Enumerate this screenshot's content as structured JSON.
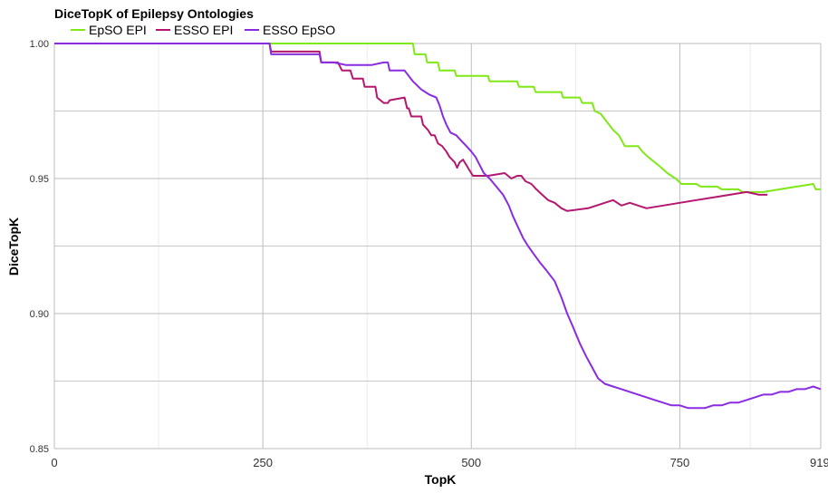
{
  "chart_data": {
    "type": "line",
    "title": "DiceTopK of Epilepsy Ontologies",
    "xlabel": "TopK",
    "ylabel": "DiceTopK",
    "xlim": [
      0,
      919
    ],
    "ylim": [
      0.85,
      1.0
    ],
    "x_ticks": [
      "0",
      "250",
      "500",
      "750",
      "919"
    ],
    "x_tick_values": [
      0,
      250,
      500,
      750,
      919
    ],
    "y_ticks": [
      "1.00",
      "0.95",
      "0.90",
      "0.85"
    ],
    "y_tick_values": [
      1.0,
      0.95,
      0.9,
      0.85
    ],
    "grid": true,
    "legend_position": "top-left",
    "series": [
      {
        "name": "EpSO EPI",
        "color": "#7FE817",
        "points": [
          [
            0,
            1.0
          ],
          [
            430,
            1.0
          ],
          [
            432,
            0.996
          ],
          [
            445,
            0.996
          ],
          [
            447,
            0.993
          ],
          [
            460,
            0.993
          ],
          [
            462,
            0.99
          ],
          [
            480,
            0.99
          ],
          [
            482,
            0.988
          ],
          [
            520,
            0.988
          ],
          [
            522,
            0.986
          ],
          [
            555,
            0.986
          ],
          [
            557,
            0.984
          ],
          [
            575,
            0.984
          ],
          [
            577,
            0.982
          ],
          [
            608,
            0.982
          ],
          [
            610,
            0.98
          ],
          [
            630,
            0.98
          ],
          [
            633,
            0.978
          ],
          [
            645,
            0.978
          ],
          [
            648,
            0.975
          ],
          [
            655,
            0.974
          ],
          [
            660,
            0.972
          ],
          [
            665,
            0.97
          ],
          [
            670,
            0.968
          ],
          [
            677,
            0.966
          ],
          [
            684,
            0.962
          ],
          [
            700,
            0.962
          ],
          [
            705,
            0.96
          ],
          [
            712,
            0.958
          ],
          [
            720,
            0.956
          ],
          [
            728,
            0.954
          ],
          [
            735,
            0.952
          ],
          [
            745,
            0.95
          ],
          [
            752,
            0.948
          ],
          [
            770,
            0.948
          ],
          [
            775,
            0.947
          ],
          [
            795,
            0.947
          ],
          [
            800,
            0.946
          ],
          [
            820,
            0.946
          ],
          [
            825,
            0.945
          ],
          [
            850,
            0.945
          ],
          [
            870,
            0.946
          ],
          [
            890,
            0.947
          ],
          [
            910,
            0.948
          ],
          [
            913,
            0.946
          ],
          [
            919,
            0.946
          ]
        ]
      },
      {
        "name": "ESSO EPI",
        "color": "#B5176E",
        "points": [
          [
            0,
            1.0
          ],
          [
            258,
            1.0
          ],
          [
            260,
            0.997
          ],
          [
            318,
            0.997
          ],
          [
            320,
            0.993
          ],
          [
            340,
            0.993
          ],
          [
            345,
            0.99
          ],
          [
            355,
            0.99
          ],
          [
            358,
            0.987
          ],
          [
            370,
            0.987
          ],
          [
            372,
            0.984
          ],
          [
            385,
            0.984
          ],
          [
            387,
            0.98
          ],
          [
            395,
            0.978
          ],
          [
            400,
            0.978
          ],
          [
            402,
            0.979
          ],
          [
            420,
            0.98
          ],
          [
            423,
            0.976
          ],
          [
            425,
            0.976
          ],
          [
            428,
            0.973
          ],
          [
            440,
            0.973
          ],
          [
            442,
            0.97
          ],
          [
            448,
            0.968
          ],
          [
            452,
            0.966
          ],
          [
            456,
            0.966
          ],
          [
            460,
            0.963
          ],
          [
            465,
            0.962
          ],
          [
            470,
            0.96
          ],
          [
            474,
            0.958
          ],
          [
            480,
            0.956
          ],
          [
            483,
            0.954
          ],
          [
            486,
            0.956
          ],
          [
            490,
            0.957
          ],
          [
            494,
            0.955
          ],
          [
            498,
            0.953
          ],
          [
            502,
            0.951
          ],
          [
            520,
            0.951
          ],
          [
            540,
            0.952
          ],
          [
            548,
            0.95
          ],
          [
            555,
            0.951
          ],
          [
            560,
            0.951
          ],
          [
            565,
            0.949
          ],
          [
            572,
            0.948
          ],
          [
            578,
            0.946
          ],
          [
            585,
            0.944
          ],
          [
            592,
            0.942
          ],
          [
            600,
            0.941
          ],
          [
            608,
            0.939
          ],
          [
            615,
            0.938
          ],
          [
            640,
            0.939
          ],
          [
            660,
            0.941
          ],
          [
            670,
            0.942
          ],
          [
            680,
            0.94
          ],
          [
            690,
            0.941
          ],
          [
            700,
            0.94
          ],
          [
            710,
            0.939
          ],
          [
            730,
            0.94
          ],
          [
            750,
            0.941
          ],
          [
            770,
            0.942
          ],
          [
            790,
            0.943
          ],
          [
            810,
            0.944
          ],
          [
            830,
            0.945
          ],
          [
            845,
            0.944
          ],
          [
            855,
            0.944
          ]
        ]
      },
      {
        "name": "ESSO EpSO",
        "color": "#8A2BE2",
        "points": [
          [
            0,
            1.0
          ],
          [
            258,
            1.0
          ],
          [
            260,
            0.996
          ],
          [
            280,
            0.996
          ],
          [
            300,
            0.996
          ],
          [
            318,
            0.996
          ],
          [
            320,
            0.993
          ],
          [
            335,
            0.993
          ],
          [
            350,
            0.992
          ],
          [
            370,
            0.992
          ],
          [
            380,
            0.992
          ],
          [
            395,
            0.993
          ],
          [
            400,
            0.993
          ],
          [
            402,
            0.99
          ],
          [
            420,
            0.99
          ],
          [
            425,
            0.988
          ],
          [
            430,
            0.986
          ],
          [
            440,
            0.983
          ],
          [
            450,
            0.981
          ],
          [
            458,
            0.98
          ],
          [
            462,
            0.977
          ],
          [
            466,
            0.973
          ],
          [
            470,
            0.97
          ],
          [
            475,
            0.967
          ],
          [
            482,
            0.966
          ],
          [
            488,
            0.964
          ],
          [
            494,
            0.962
          ],
          [
            500,
            0.96
          ],
          [
            505,
            0.958
          ],
          [
            510,
            0.955
          ],
          [
            515,
            0.952
          ],
          [
            522,
            0.95
          ],
          [
            530,
            0.947
          ],
          [
            538,
            0.944
          ],
          [
            545,
            0.94
          ],
          [
            550,
            0.936
          ],
          [
            556,
            0.932
          ],
          [
            562,
            0.928
          ],
          [
            568,
            0.925
          ],
          [
            575,
            0.922
          ],
          [
            582,
            0.919
          ],
          [
            590,
            0.916
          ],
          [
            600,
            0.912
          ],
          [
            608,
            0.906
          ],
          [
            615,
            0.9
          ],
          [
            622,
            0.895
          ],
          [
            630,
            0.889
          ],
          [
            638,
            0.884
          ],
          [
            645,
            0.88
          ],
          [
            652,
            0.876
          ],
          [
            660,
            0.874
          ],
          [
            670,
            0.873
          ],
          [
            680,
            0.872
          ],
          [
            690,
            0.871
          ],
          [
            700,
            0.87
          ],
          [
            710,
            0.869
          ],
          [
            720,
            0.868
          ],
          [
            730,
            0.867
          ],
          [
            740,
            0.866
          ],
          [
            750,
            0.866
          ],
          [
            760,
            0.865
          ],
          [
            770,
            0.865
          ],
          [
            780,
            0.865
          ],
          [
            790,
            0.866
          ],
          [
            800,
            0.866
          ],
          [
            810,
            0.867
          ],
          [
            820,
            0.867
          ],
          [
            830,
            0.868
          ],
          [
            840,
            0.869
          ],
          [
            850,
            0.87
          ],
          [
            860,
            0.87
          ],
          [
            870,
            0.871
          ],
          [
            880,
            0.871
          ],
          [
            890,
            0.872
          ],
          [
            900,
            0.872
          ],
          [
            910,
            0.873
          ],
          [
            919,
            0.872
          ]
        ]
      }
    ]
  }
}
